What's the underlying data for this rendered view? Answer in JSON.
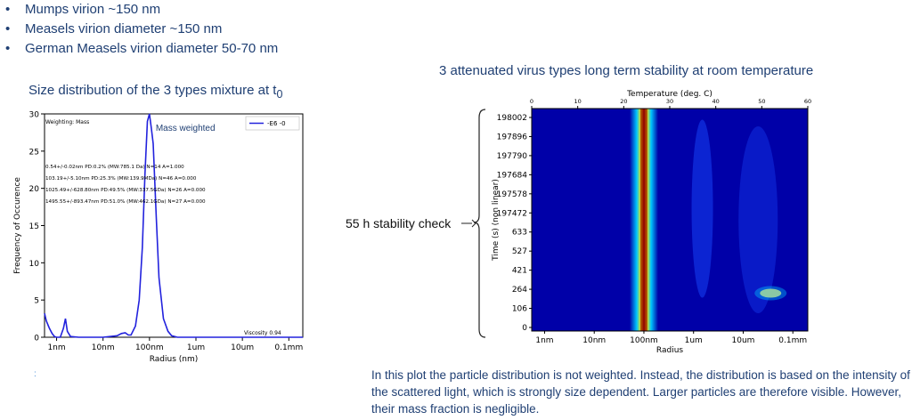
{
  "bullets": [
    "Mumps  virion ~150 nm",
    "Measels virion diameter ~150 nm",
    "German  Measels virion diameter 50-70 nm"
  ],
  "left_title": "Size distribution of the 3 types mixture at t",
  "left_title_sub": "0",
  "right_title": "3 attenuated virus types long term stability at room temperature",
  "stability_label": "55 h stability check",
  "note": "In this plot the particle distribution is not weighted. Instead, the distribution is based on the intensity of the scattered light, which is strongly size dependent. Larger particles are therefore visible. However, their mass fraction is negligible.",
  "accent_color": "#1f3f73",
  "chart_data": [
    {
      "type": "line",
      "xlabel": "Radius (nm)",
      "ylabel": "Frequency of Occurence",
      "xscale": "log",
      "xlim": [
        0.55,
        200000
      ],
      "ylim": [
        0,
        30
      ],
      "xtick_labels": [
        "1nm",
        "10nm",
        "100nm",
        "1um",
        "10um",
        "0.1mm"
      ],
      "xtick_values": [
        1,
        10,
        100,
        1000,
        10000,
        100000
      ],
      "yticks": [
        0,
        5,
        10,
        15,
        20,
        25,
        30
      ],
      "grid": false,
      "legend": "top-right",
      "legend_entries": [
        "-E6 -0"
      ],
      "series": [
        {
          "name": "-E6 -0",
          "color": "#2222dd",
          "x": [
            0.55,
            0.6,
            0.7,
            0.8,
            0.9,
            1.0,
            1.2,
            1.4,
            1.55,
            1.7,
            2,
            3,
            5,
            10,
            20,
            25,
            30,
            35,
            40,
            50,
            60,
            70,
            80,
            90,
            100,
            110,
            120,
            140,
            160,
            200,
            250,
            300,
            400,
            600,
            1000,
            2000,
            10000,
            100000,
            200000
          ],
          "y": [
            3.2,
            2.2,
            1.2,
            0.5,
            0.1,
            0,
            0,
            1.2,
            2.5,
            0.8,
            0.1,
            0,
            0,
            0,
            0.2,
            0.5,
            0.6,
            0.3,
            0.3,
            1.5,
            5,
            12,
            22,
            29,
            30,
            28,
            26,
            16,
            8,
            2.5,
            0.8,
            0.2,
            0,
            0,
            0,
            0,
            0,
            0,
            0
          ]
        }
      ],
      "annotations": [
        "Weighting: Mass",
        "Mass weighted",
        "0.54+/-0.02nm PD:0.2% (MW:785.1 Da) N=14 A=1.000",
        "103.19+/-5.10nm PD:25.3% (MW:139.9MDa) N=46 A=0.000",
        "1025.49+/-628.80nm PD:49.5% (MW:337.5GDa) N=26 A=0.000",
        "1495.55+/-893.47nm PD:51.0% (MW:462.1GDa) N=27 A=0.000",
        "Viscosity 0.94"
      ]
    },
    {
      "type": "heatmap",
      "xlabel": "Radius",
      "ylabel": "Time (s) (non linear)",
      "x2label": "Temperature (deg. C)",
      "xscale": "log",
      "xlim": [
        0.55,
        200000
      ],
      "xtick_labels": [
        "1nm",
        "10nm",
        "100nm",
        "1um",
        "10um",
        "0.1mm"
      ],
      "xtick_values": [
        1,
        10,
        100,
        1000,
        10000,
        100000
      ],
      "x2lim": [
        0,
        60
      ],
      "x2ticks": [
        0,
        10,
        20,
        30,
        40,
        50,
        60
      ],
      "ytick_labels": [
        "0",
        "106",
        "264",
        "421",
        "527",
        "633",
        "197472",
        "197578",
        "197684",
        "197790",
        "197896",
        "198002"
      ],
      "colormap": "jet",
      "features": [
        {
          "radius": 100,
          "level": 1.0,
          "description": "main peak band"
        },
        {
          "radius": 1500,
          "level": 0.3
        },
        {
          "radius": 20000,
          "level": 0.35
        }
      ]
    }
  ]
}
